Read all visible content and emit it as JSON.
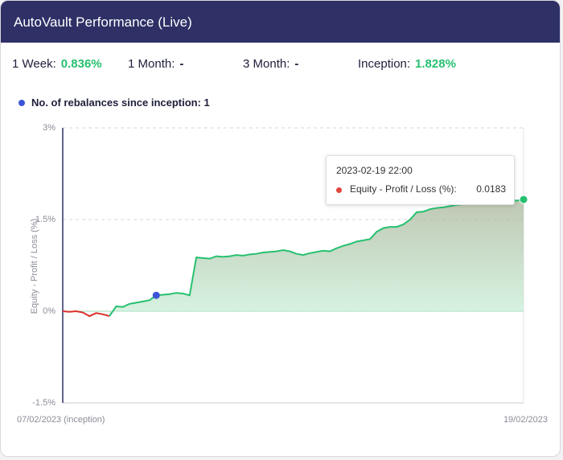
{
  "header": {
    "title": "AutoVault Performance (Live)"
  },
  "stats": [
    {
      "label": "1 Week:",
      "value": "0.836%"
    },
    {
      "label": "1 Month:",
      "value": "-"
    },
    {
      "label": "3 Month:",
      "value": "-"
    },
    {
      "label": "Inception:",
      "value": "1.828%"
    }
  ],
  "rebalances": {
    "text": "No. of rebalances since inception: 1"
  },
  "tooltip": {
    "time": "2023-02-19 22:00",
    "label": "Equity - Profit / Loss (%):",
    "value": "0.0183"
  },
  "chart_data": {
    "type": "line",
    "ylabel": "Equity - Profit / Loss (%)",
    "ylim": [
      -1.5,
      3
    ],
    "yticks": [
      {
        "value": -1.5,
        "label": "-1.5%"
      },
      {
        "value": 0,
        "label": "0%"
      },
      {
        "value": 1.5,
        "label": "1.5%"
      },
      {
        "value": 3,
        "label": "3%"
      }
    ],
    "grid": true,
    "rebalance_point": 14,
    "categories": [
      "07/02/2023 (inception)",
      null,
      null,
      null,
      null,
      null,
      null,
      null,
      null,
      null,
      null,
      null,
      null,
      null,
      null,
      null,
      null,
      null,
      null,
      null,
      null,
      null,
      null,
      null,
      null,
      null,
      null,
      null,
      null,
      null,
      null,
      null,
      null,
      null,
      null,
      null,
      null,
      null,
      null,
      null,
      null,
      null,
      null,
      null,
      null,
      null,
      null,
      null,
      null,
      null,
      null,
      null,
      null,
      null,
      null,
      null,
      null,
      null,
      null,
      null,
      null,
      null,
      null,
      null,
      null,
      null,
      null,
      null,
      null,
      "19/02/2023"
    ],
    "series": [
      {
        "name": "Equity - Profit / Loss (%)",
        "color": "#27c070",
        "negative_color": "#d9302a",
        "values": [
          0,
          -0.01,
          0,
          -0.02,
          -0.08,
          -0.03,
          -0.05,
          -0.08,
          0.08,
          0.07,
          0.12,
          0.14,
          0.16,
          0.18,
          0.26,
          0.27,
          0.28,
          0.3,
          0.29,
          0.26,
          0.88,
          0.87,
          0.86,
          0.9,
          0.89,
          0.9,
          0.92,
          0.91,
          0.93,
          0.94,
          0.96,
          0.97,
          0.98,
          1.0,
          0.98,
          0.94,
          0.92,
          0.95,
          0.97,
          0.99,
          0.98,
          1.03,
          1.07,
          1.1,
          1.14,
          1.16,
          1.18,
          1.3,
          1.36,
          1.38,
          1.38,
          1.42,
          1.5,
          1.62,
          1.63,
          1.67,
          1.69,
          1.7,
          1.72,
          1.74,
          1.75,
          1.76,
          1.77,
          1.77,
          1.79,
          1.8,
          1.8,
          1.82,
          1.81,
          1.828
        ]
      }
    ]
  }
}
